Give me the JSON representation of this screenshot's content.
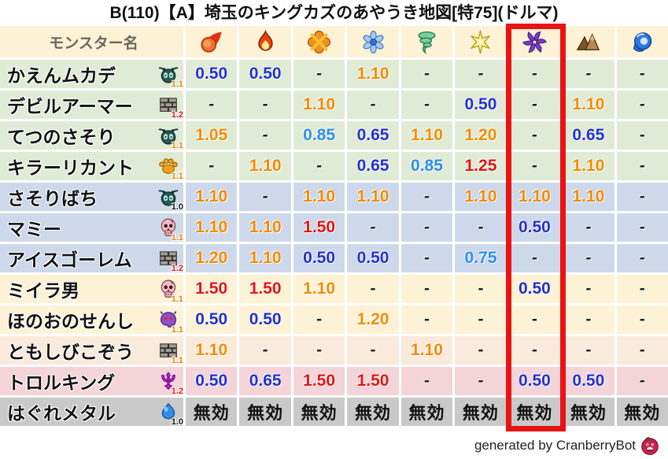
{
  "title": "B(110)【A】埼玉のキングカズのあやうき地図[特75](ドルマ)",
  "footer": {
    "credit": "generated by CranberryBot",
    "bot_icon": "cranberry-icon"
  },
  "colors": {
    "header_bg": "#fdf2d6",
    "highlight_box": "#ea1313",
    "value_colors": {
      "immune": "#111111",
      "dash": "#222222",
      "strong_resist": "#2231cf",
      "resist": "#2b8df0",
      "weak": "#f28b00",
      "very_weak": "#e31414"
    },
    "rate_colors": {
      "1.0": "#111111",
      "1.1": "#e8820a",
      "1.2": "#e31414"
    }
  },
  "chart_data": {
    "type": "table",
    "title": "B(110)【A】埼玉のキングカズのあやうき地図[特75](ドルマ)",
    "name_column_header": "モンスター名",
    "columns": [
      "fireball",
      "flame",
      "burst",
      "snowflake",
      "tornado",
      "spark",
      "pinwheel",
      "mountain",
      "wave"
    ],
    "highlighted_column": "pinwheel",
    "highlighted_column_index": 6,
    "immune_label": "無効",
    "rows": [
      {
        "name": "かえんムカデ",
        "family_icon": "bug-icon",
        "family_rate": "1.1",
        "row_color": "#e0ebd6",
        "values": [
          "0.50",
          "0.50",
          "-",
          "1.10",
          "-",
          "-",
          "-",
          "-",
          "-"
        ]
      },
      {
        "name": "デビルアーマー",
        "family_icon": "brick-icon",
        "family_rate": "1.2",
        "row_color": "#e0ebd6",
        "values": [
          "-",
          "-",
          "1.10",
          "-",
          "-",
          "0.50",
          "-",
          "1.10",
          "-"
        ]
      },
      {
        "name": "てつのさそり",
        "family_icon": "bug-icon",
        "family_rate": "1.1",
        "row_color": "#e0ebd6",
        "values": [
          "1.05",
          "-",
          "0.85",
          "0.65",
          "1.10",
          "1.20",
          "-",
          "0.65",
          "-"
        ]
      },
      {
        "name": "キラーリカント",
        "family_icon": "paw-icon",
        "family_rate": "1.1",
        "row_color": "#e0ebd6",
        "values": [
          "-",
          "1.10",
          "-",
          "0.65",
          "0.85",
          "1.25",
          "-",
          "1.10",
          "-"
        ]
      },
      {
        "name": "さそりばち",
        "family_icon": "bug-icon",
        "family_rate": "1.0",
        "row_color": "#cdd9ea",
        "values": [
          "1.10",
          "-",
          "1.10",
          "1.10",
          "-",
          "1.10",
          "1.10",
          "1.10",
          "-"
        ]
      },
      {
        "name": "マミー",
        "family_icon": "skull-icon",
        "family_rate": "1.1",
        "row_color": "#cdd9ea",
        "values": [
          "1.10",
          "1.10",
          "1.50",
          "-",
          "-",
          "-",
          "0.50",
          "-",
          "-"
        ]
      },
      {
        "name": "アイスゴーレム",
        "family_icon": "brick-icon",
        "family_rate": "1.2",
        "row_color": "#cdd9ea",
        "values": [
          "1.20",
          "1.10",
          "0.50",
          "0.50",
          "-",
          "0.75",
          "-",
          "-",
          "-"
        ]
      },
      {
        "name": "ミイラ男",
        "family_icon": "skull-icon",
        "family_rate": "1.1",
        "row_color": "#fdf2d6",
        "values": [
          "1.50",
          "1.50",
          "1.10",
          "-",
          "-",
          "-",
          "0.50",
          "-",
          "-"
        ]
      },
      {
        "name": "ほのおのせんし",
        "family_icon": "demon-icon",
        "family_rate": "1.1",
        "row_color": "#fdf2d6",
        "values": [
          "0.50",
          "0.50",
          "-",
          "1.20",
          "-",
          "-",
          "-",
          "-",
          "-"
        ]
      },
      {
        "name": "ともしびこぞう",
        "family_icon": "brick-icon",
        "family_rate": "1.1",
        "row_color": "#faeadb",
        "values": [
          "1.10",
          "-",
          "-",
          "-",
          "1.10",
          "-",
          "-",
          "-",
          "-"
        ]
      },
      {
        "name": "トロルキング",
        "family_icon": "devil-emblem-icon",
        "family_rate": "1.2",
        "row_color": "#f3d4d9",
        "values": [
          "0.50",
          "0.65",
          "1.50",
          "1.50",
          "-",
          "-",
          "0.50",
          "0.50",
          "-"
        ]
      },
      {
        "name": "はぐれメタル",
        "family_icon": "slime-icon",
        "family_rate": "1.0",
        "row_color": "#c9c9c9",
        "values": [
          "無効",
          "無効",
          "無効",
          "無効",
          "無効",
          "無効",
          "無効",
          "無効",
          "無効"
        ]
      }
    ]
  }
}
